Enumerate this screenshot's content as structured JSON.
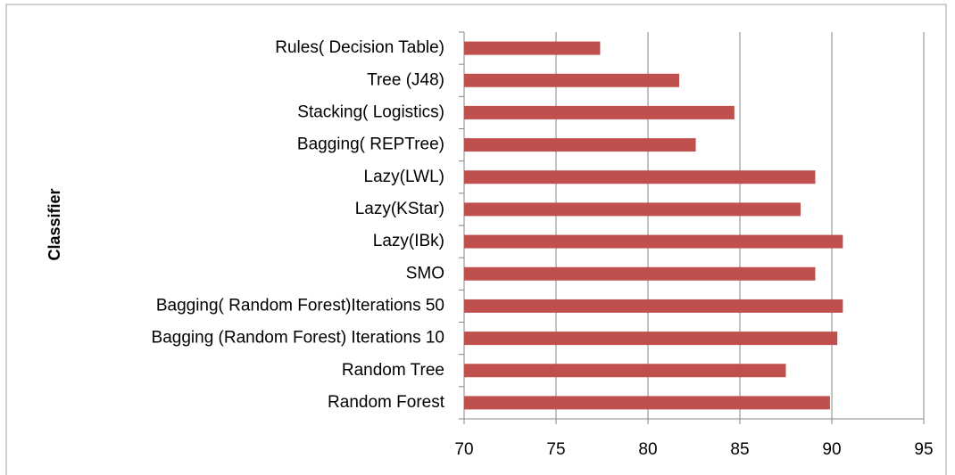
{
  "chart_data": {
    "type": "barh",
    "y_label": "Classifier",
    "categories": [
      "Rules( Decision Table)",
      "Tree (J48)",
      "Stacking( Logistics)",
      "Bagging( REPTree)",
      "Lazy(LWL)",
      "Lazy(KStar)",
      "Lazy(IBk)",
      "SMO",
      "Bagging( Random Forest)Iterations 50",
      "Bagging (Random Forest) Iterations 10",
      "Random Tree",
      "Random Forest"
    ],
    "values": [
      77.4,
      81.7,
      84.7,
      82.6,
      89.1,
      88.3,
      90.6,
      89.1,
      90.6,
      90.3,
      87.5,
      89.9
    ],
    "color": "#c0504d",
    "xlim": [
      70,
      95
    ],
    "xticks": [
      70,
      75,
      80,
      85,
      90,
      95
    ],
    "grid": true
  }
}
